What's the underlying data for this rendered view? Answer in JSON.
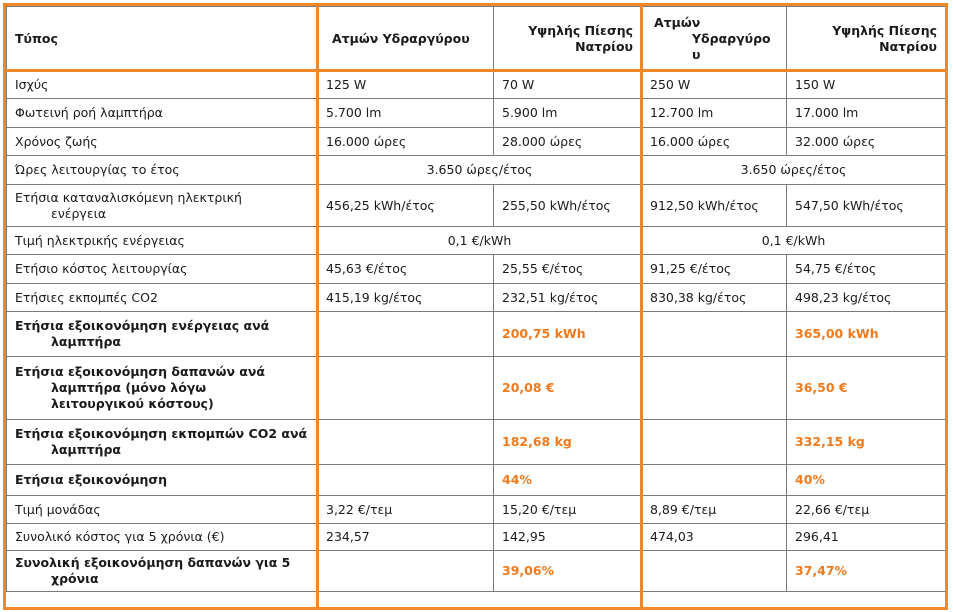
{
  "colors": {
    "accent": "#f0882a",
    "highlight_text": "#f07a1e"
  },
  "header": {
    "col0": "Τύπος",
    "col1": "Ατμών Υδραργύρου",
    "col2": "Υψηλής Πίεσης Νατρίου",
    "col3_lines": [
      "Ατμών",
      "Υδραργύρο",
      "υ"
    ],
    "col4": "Υψηλής Πίεσης Νατρίου"
  },
  "rows": {
    "power": {
      "label": "Ισχύς",
      "v": [
        "125 W",
        "70 W",
        "250 W",
        "150 W"
      ]
    },
    "flux": {
      "label": "Φωτεινή ροή λαμπτήρα",
      "v": [
        "5.700 lm",
        "5.900 lm",
        "12.700 lm",
        "17.000 lm"
      ]
    },
    "life": {
      "label": "Χρόνος ζωής",
      "v": [
        "16.000 ώρες",
        "28.000 ώρες",
        "16.000 ώρες",
        "32.000 ώρες"
      ]
    },
    "hours": {
      "label": "Ώρες λειτουργίας το έτος",
      "v": [
        "3.650 ώρες/έτος",
        "3.650 ώρες/έτος"
      ]
    },
    "energy": {
      "label_lines": [
        "Ετήσια καταναλισκόμενη ηλεκτρική",
        "ενέργεια"
      ],
      "v": [
        "456,25 kWh/έτος",
        "255,50 kWh/έτος",
        "912,50 kWh/έτος",
        "547,50 kWh/έτος"
      ]
    },
    "price": {
      "label": "Τιμή ηλεκτρικής ενέργειας",
      "v": [
        "0,1 €/kWh",
        "0,1 €/kWh"
      ]
    },
    "cost": {
      "label": "Ετήσιο κόστος λειτουργίας",
      "v": [
        "45,63 €/έτος",
        "25,55 €/έτος",
        "91,25 €/έτος",
        "54,75 €/έτος"
      ]
    },
    "co2": {
      "label": "Ετήσιες εκπομπές CO2",
      "v": [
        "415,19 kg/έτος",
        "232,51 kg/έτος",
        "830,38 kg/έτος",
        "498,23 kg/έτος"
      ]
    },
    "save_energy": {
      "label_lines": [
        "Ετήσια εξοικονόμηση ενέργειας ανά",
        "λαμπτήρα"
      ],
      "v": [
        "200,75 kWh",
        "365,00 kWh"
      ]
    },
    "save_cost": {
      "label_lines": [
        "Ετήσια εξοικονόμηση δαπανών ανά",
        "λαμπτήρα (μόνο λόγω",
        "λειτουργικού κόστους)"
      ],
      "v": [
        "20,08 €",
        "36,50 €"
      ]
    },
    "save_co2": {
      "label_lines": [
        "Ετήσια εξοικονόμηση εκπομπών CO2 ανά",
        "λαμπτήρα"
      ],
      "v": [
        "182,68 kg",
        "332,15 kg"
      ]
    },
    "save_pct": {
      "label": "Ετήσια εξοικονόμηση",
      "v": [
        "44%",
        "40%"
      ]
    },
    "unit_price": {
      "label": "Τιμή μονάδας",
      "v": [
        "3,22 €/τεμ",
        "15,20 €/τεμ",
        "8,89 €/τεμ",
        "22,66 €/τεμ"
      ]
    },
    "total5": {
      "label": "Συνολικό κόστος για 5 χρόνια (€)",
      "v": [
        "234,57",
        "142,95",
        "474,03",
        "296,41"
      ]
    },
    "total_save": {
      "label_lines": [
        "Συνολική εξοικονόμηση δαπανών για 5",
        "χρόνια"
      ],
      "v": [
        "39,06%",
        "37,47%"
      ]
    }
  }
}
